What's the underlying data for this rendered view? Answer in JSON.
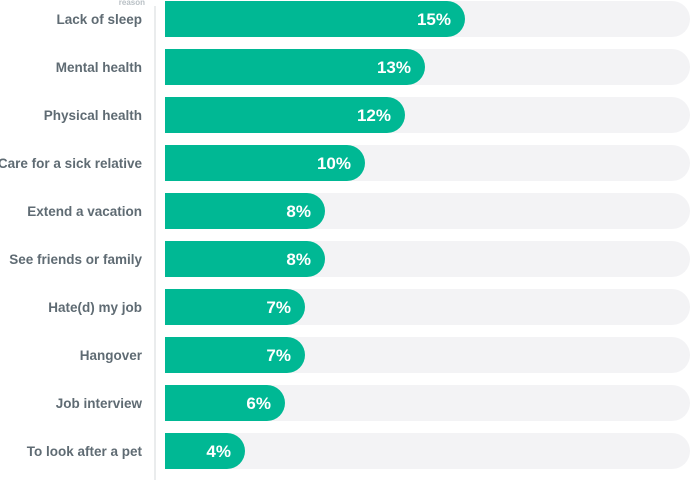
{
  "chart_data": {
    "type": "bar",
    "orientation": "horizontal",
    "ylabel": "reason",
    "categories": [
      "Lack of sleep",
      "Mental health",
      "Physical health",
      "Care for a sick relative",
      "Extend a vacation",
      "See friends or family",
      "Hate(d) my job",
      "Hangover",
      "Job interview",
      "To look after a pet"
    ],
    "values": [
      15,
      13,
      12,
      10,
      8,
      8,
      7,
      7,
      6,
      4
    ],
    "value_labels": [
      "15%",
      "13%",
      "12%",
      "10%",
      "8%",
      "8%",
      "7%",
      "7%",
      "6%",
      "4%"
    ],
    "xlim": [
      0,
      26.25
    ],
    "colors": {
      "bar": "#00b894",
      "track": "#f3f3f5"
    }
  }
}
